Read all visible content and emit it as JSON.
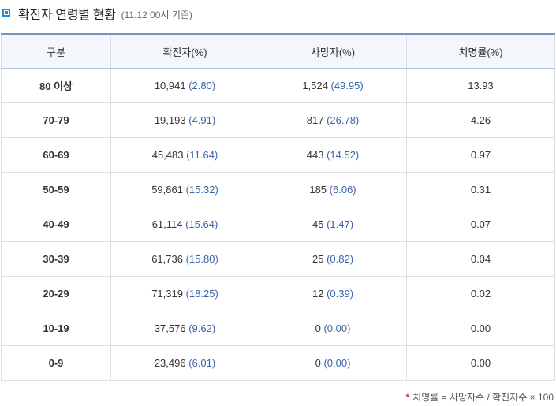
{
  "header": {
    "title": "확진자 연령별 현황",
    "subtitle": "(11.12 00시 기준)"
  },
  "table": {
    "columns": [
      "구분",
      "확진자(%)",
      "사망자(%)",
      "치명률(%)"
    ],
    "rows": [
      {
        "age": "80 이상",
        "cases": "10,941",
        "cases_pct": "(2.80)",
        "deaths": "1,524",
        "deaths_pct": "(49.95)",
        "fatality": "13.93"
      },
      {
        "age": "70-79",
        "cases": "19,193",
        "cases_pct": "(4.91)",
        "deaths": "817",
        "deaths_pct": "(26.78)",
        "fatality": "4.26"
      },
      {
        "age": "60-69",
        "cases": "45,483",
        "cases_pct": "(11.64)",
        "deaths": "443",
        "deaths_pct": "(14.52)",
        "fatality": "0.97"
      },
      {
        "age": "50-59",
        "cases": "59,861",
        "cases_pct": "(15.32)",
        "deaths": "185",
        "deaths_pct": "(6.06)",
        "fatality": "0.31"
      },
      {
        "age": "40-49",
        "cases": "61,114",
        "cases_pct": "(15.64)",
        "deaths": "45",
        "deaths_pct": "(1.47)",
        "fatality": "0.07"
      },
      {
        "age": "30-39",
        "cases": "61,736",
        "cases_pct": "(15.80)",
        "deaths": "25",
        "deaths_pct": "(0.82)",
        "fatality": "0.04"
      },
      {
        "age": "20-29",
        "cases": "71,319",
        "cases_pct": "(18.25)",
        "deaths": "12",
        "deaths_pct": "(0.39)",
        "fatality": "0.02"
      },
      {
        "age": "10-19",
        "cases": "37,576",
        "cases_pct": "(9.62)",
        "deaths": "0",
        "deaths_pct": "(0.00)",
        "fatality": "0.00"
      },
      {
        "age": "0-9",
        "cases": "23,496",
        "cases_pct": "(6.01)",
        "deaths": "0",
        "deaths_pct": "(0.00)",
        "fatality": "0.00"
      }
    ]
  },
  "footnote": {
    "marker": "*",
    "text": "치명률 = 사망자수 / 확진자수 × 100"
  },
  "colors": {
    "accent": "#1e8bd6",
    "header_rule": "#7892c8",
    "percent_text": "#3a64a8",
    "footnote_star": "#d9302c"
  },
  "icons": {
    "title_bullet": "square-bullet-icon"
  }
}
